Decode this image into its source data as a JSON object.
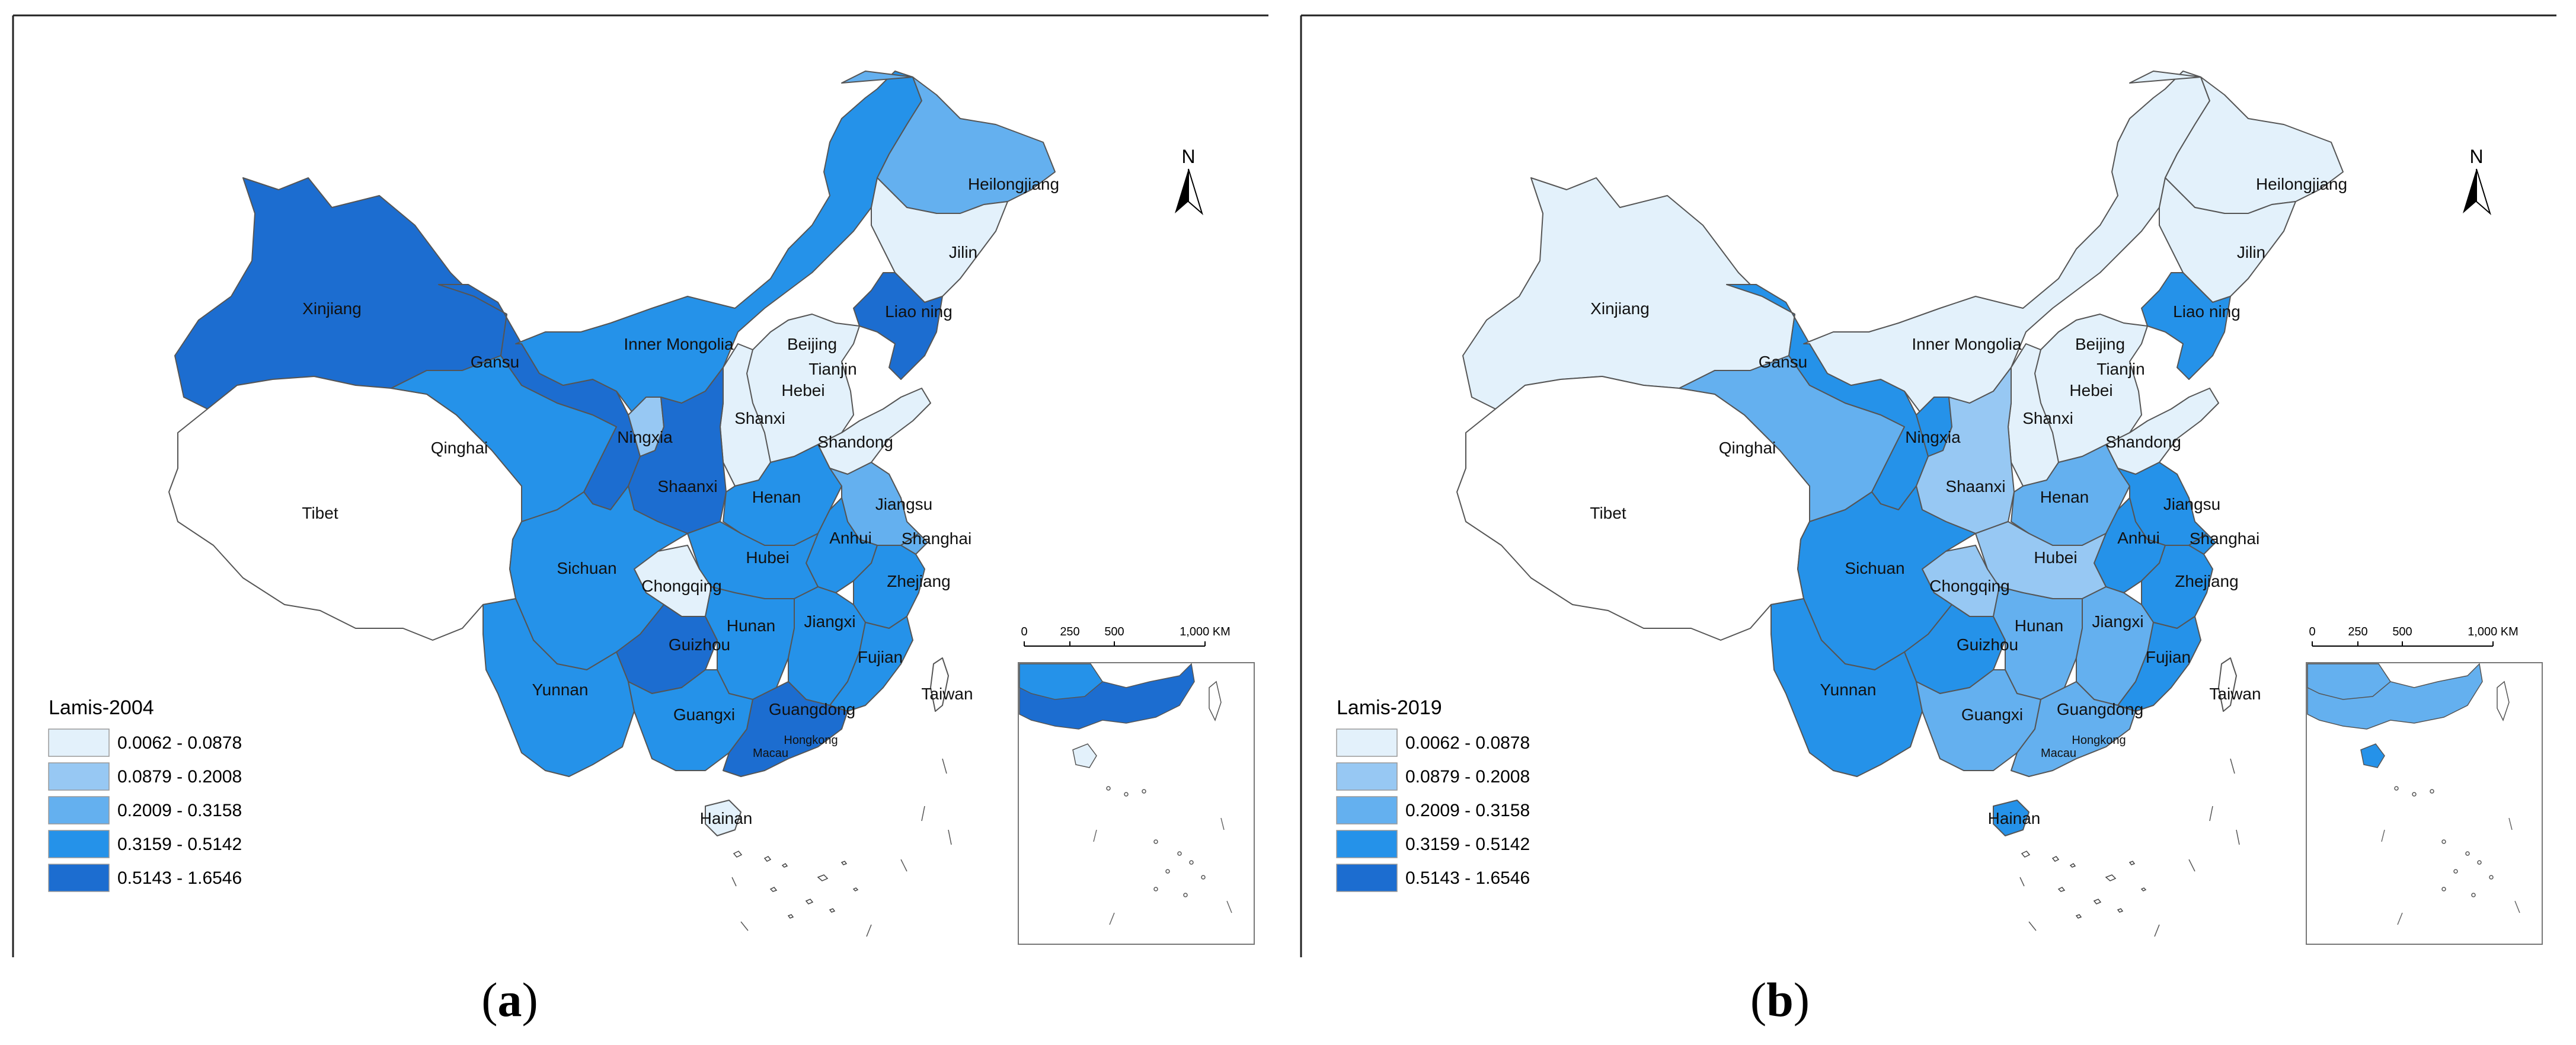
{
  "colors": [
    "#e3f1fb",
    "#97c8f3",
    "#64b0ef",
    "#2592e9",
    "#1c6dd0"
  ],
  "panels": [
    {
      "label_open": "(",
      "label_letter": "a",
      "label_close": ")",
      "legend_title": "Lamis-2004",
      "legend": [
        "0.0062 - 0.0878",
        "0.0879 - 0.2008",
        "0.2009 - 0.3158",
        "0.3159 - 0.5142",
        "0.5143 - 1.6546"
      ],
      "classes": {
        "Heilongjiang": 2,
        "Jilin": 0,
        "Liaoning": 4,
        "InnerMongolia": 3,
        "Beijing": 0,
        "Tianjin": 4,
        "Hebei": 0,
        "Shanxi": 0,
        "Shandong": 0,
        "Xinjiang": 4,
        "Gansu": 4,
        "Qinghai": 3,
        "Ningxia": 1,
        "Shaanxi": 4,
        "Henan": 3,
        "Jiangsu": 2,
        "Anhui": 3,
        "Shanghai": 2,
        "Tibet": -1,
        "Sichuan": 3,
        "Chongqing": 0,
        "Hubei": 3,
        "Zhejiang": 3,
        "Hunan": 3,
        "Jiangxi": 3,
        "Fujian": 3,
        "Yunnan": 3,
        "Guizhou": 4,
        "Guangxi": 3,
        "Guangdong": 4,
        "Hainan": 0,
        "Taiwan": -1
      }
    },
    {
      "label_open": "(",
      "label_letter": "b",
      "label_close": ")",
      "legend_title": "Lamis-2019",
      "legend": [
        "0.0062 - 0.0878",
        "0.0879 - 0.2008",
        "0.2009 - 0.3158",
        "0.3159 - 0.5142",
        "0.5143 - 1.6546"
      ],
      "classes": {
        "Heilongjiang": 0,
        "Jilin": 0,
        "Liaoning": 3,
        "InnerMongolia": 0,
        "Beijing": 0,
        "Tianjin": 4,
        "Hebei": 0,
        "Shanxi": 0,
        "Shandong": 0,
        "Xinjiang": 0,
        "Gansu": 3,
        "Qinghai": 2,
        "Ningxia": 3,
        "Shaanxi": 1,
        "Henan": 2,
        "Jiangsu": 3,
        "Anhui": 3,
        "Shanghai": 3,
        "Tibet": -1,
        "Sichuan": 3,
        "Chongqing": 1,
        "Hubei": 1,
        "Zhejiang": 3,
        "Hunan": 2,
        "Jiangxi": 2,
        "Fujian": 3,
        "Yunnan": 3,
        "Guizhou": 3,
        "Guangxi": 2,
        "Guangdong": 2,
        "Hainan": 3,
        "Taiwan": -1
      }
    }
  ],
  "labels": {
    "Heilongjiang": "Heilongjiang",
    "Jilin": "Jilin",
    "Liaoning": "Liao ning",
    "InnerMongolia": "Inner  Mongolia",
    "Beijing": "Beijing",
    "Tianjin": "Tianjin",
    "Hebei": "Hebei",
    "Shanxi": "Shanxi",
    "Shandong": "Shandong",
    "Xinjiang": "Xinjiang",
    "Gansu": "Gansu",
    "Qinghai": "Qinghai",
    "Ningxia": "Ningxia",
    "Shaanxi": "Shaanxi",
    "Henan": "Henan",
    "Jiangsu": "Jiangsu",
    "Anhui": "Anhui",
    "Shanghai": "Shanghai",
    "Tibet": "Tibet",
    "Sichuan": "Sichuan",
    "Chongqing": "Chongqing",
    "Hubei": "Hubei",
    "Zhejiang": "Zhejiang",
    "Hunan": "Hunan",
    "Jiangxi": "Jiangxi",
    "Fujian": "Fujian",
    "Yunnan": "Yunnan",
    "Guizhou": "Guizhou",
    "Guangxi": "Guangxi",
    "Guangdong": "Guangdong",
    "Hainan": "Hainan",
    "Taiwan": "Taiwan",
    "Hongkong": "Hongkong",
    "Macau": "Macau"
  },
  "north_label": "N",
  "scale": {
    "ticks": [
      "0",
      "250",
      "500",
      "1,000 KM"
    ]
  }
}
